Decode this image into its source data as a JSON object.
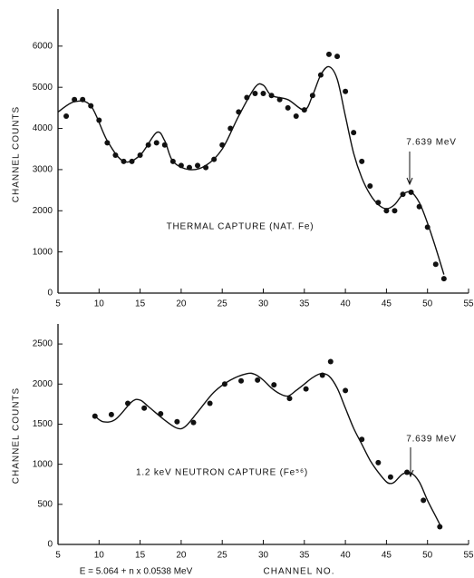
{
  "chart_data": [
    {
      "type": "scatter",
      "ylabel": "CHANNEL COUNTS",
      "xlim": [
        5,
        55
      ],
      "xticks": [
        5,
        10,
        15,
        20,
        25,
        30,
        35,
        40,
        45,
        50,
        55
      ],
      "ylim": [
        0,
        6900
      ],
      "yticks": [
        0,
        1000,
        2000,
        3000,
        4000,
        5000,
        6000
      ],
      "annotations": [
        "7.639 MeV",
        "THERMAL CAPTURE (NAT. Fe)"
      ],
      "series": [
        {
          "mode": "markers",
          "color": "#111111",
          "x": [
            6,
            7,
            8,
            9,
            10,
            11,
            12,
            13,
            14,
            15,
            16,
            17,
            18,
            19,
            20,
            21,
            22,
            23,
            24,
            25,
            26,
            27,
            28,
            29,
            30,
            31,
            32,
            33,
            34,
            35,
            36,
            37,
            38,
            39,
            40,
            41,
            42,
            43,
            44,
            45,
            46,
            47,
            48,
            49,
            50,
            51,
            52
          ],
          "values": [
            4300,
            4700,
            4700,
            4550,
            4200,
            3650,
            3350,
            3200,
            3200,
            3350,
            3600,
            3650,
            3600,
            3200,
            3100,
            3050,
            3100,
            3050,
            3250,
            3600,
            4000,
            4400,
            4750,
            4850,
            4850,
            4800,
            4700,
            4500,
            4300,
            4450,
            4800,
            5300,
            5800,
            5750,
            4900,
            3900,
            3200,
            2600,
            2200,
            2000,
            2000,
            2400,
            2450,
            2100,
            1600,
            700,
            350
          ]
        },
        {
          "mode": "line",
          "color": "#111111",
          "x": [
            5,
            7,
            9,
            11,
            13,
            15,
            17,
            18,
            19,
            21,
            23,
            25,
            27,
            29,
            30,
            31,
            33,
            35,
            36,
            37,
            38,
            39,
            40,
            41,
            42,
            43,
            44,
            45,
            46,
            47,
            48,
            49,
            50,
            51,
            52
          ],
          "values": [
            4400,
            4650,
            4550,
            3700,
            3200,
            3350,
            3900,
            3700,
            3200,
            3000,
            3100,
            3500,
            4300,
            5000,
            5050,
            4800,
            4700,
            4450,
            4800,
            5300,
            5500,
            5200,
            4300,
            3400,
            2800,
            2400,
            2150,
            2050,
            2150,
            2400,
            2450,
            2200,
            1700,
            1100,
            450
          ]
        }
      ]
    },
    {
      "type": "scatter",
      "ylabel": "CHANNEL COUNTS",
      "xlabel": "CHANNEL NO.",
      "note": "E = 5.064 + n x 0.0538 MeV",
      "xlim": [
        5,
        55
      ],
      "xticks": [
        5,
        10,
        15,
        20,
        25,
        30,
        35,
        40,
        45,
        50,
        55
      ],
      "ylim": [
        0,
        2750
      ],
      "yticks": [
        0,
        500,
        1000,
        1500,
        2000,
        2500
      ],
      "annotations": [
        "7.639 MeV",
        "1.2 keV NEUTRON CAPTURE (Fe⁵⁶)"
      ],
      "series": [
        {
          "mode": "markers",
          "color": "#111111",
          "x": [
            9.5,
            11.5,
            13.5,
            15.5,
            17.5,
            19.5,
            21.5,
            23.5,
            25.3,
            27.3,
            29.3,
            31.3,
            33.2,
            35.2,
            37.2,
            38.2,
            40,
            42,
            44,
            45.5,
            47.5,
            49.5,
            51.5
          ],
          "values": [
            1600,
            1620,
            1760,
            1700,
            1630,
            1530,
            1520,
            1760,
            2000,
            2040,
            2050,
            1990,
            1820,
            1940,
            2110,
            2280,
            1920,
            1310,
            1020,
            840,
            900,
            550,
            220
          ]
        },
        {
          "mode": "line",
          "color": "#111111",
          "x": [
            9.5,
            10.5,
            12,
            14,
            15,
            16,
            18,
            19.5,
            20.5,
            22,
            24,
            26,
            28,
            29,
            30,
            31,
            32,
            33,
            34,
            35,
            36,
            37,
            38,
            39,
            40,
            41,
            42,
            43,
            44,
            45,
            45.5,
            46,
            47,
            48,
            49,
            50,
            51,
            51.5
          ],
          "values": [
            1600,
            1530,
            1560,
            1780,
            1800,
            1720,
            1550,
            1450,
            1470,
            1650,
            1900,
            2050,
            2130,
            2120,
            2050,
            1950,
            1880,
            1850,
            1920,
            2000,
            2080,
            2130,
            2100,
            1950,
            1700,
            1450,
            1250,
            1050,
            900,
            780,
            760,
            780,
            880,
            890,
            780,
            550,
            350,
            250
          ]
        }
      ]
    }
  ]
}
